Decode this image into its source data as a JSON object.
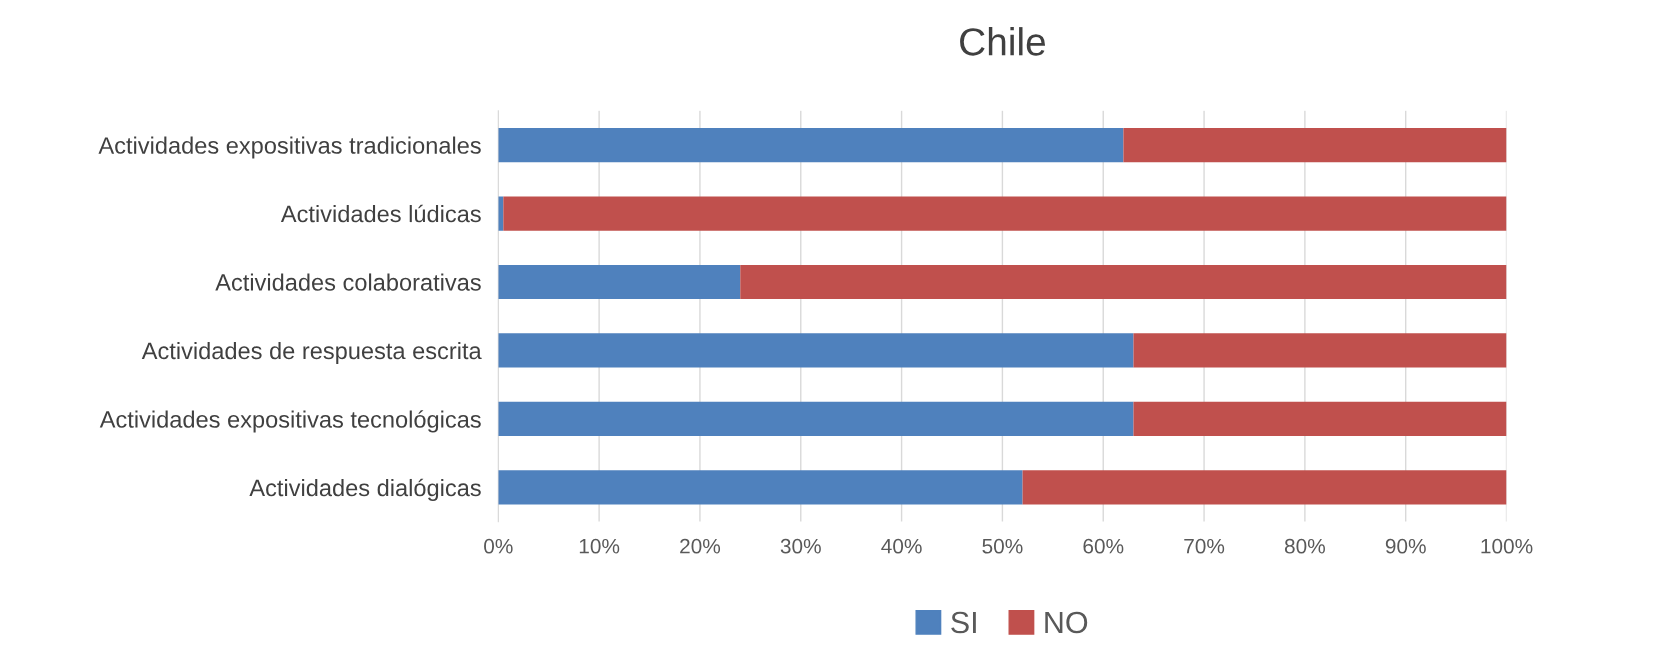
{
  "chart_data": {
    "type": "bar",
    "orientation": "horizontal",
    "stacked": true,
    "title": "Chile",
    "categories": [
      "Actividades expositivas tradicionales",
      "Actividades lúdicas",
      "Actividades colaborativas",
      "Actividades de respuesta escrita",
      "Actividades expositivas tecnológicas",
      "Actividades dialógicas"
    ],
    "series": [
      {
        "name": "SI",
        "color": "#4f81bd",
        "values": [
          62,
          0.5,
          24,
          63,
          63,
          52
        ]
      },
      {
        "name": "NO",
        "color": "#c0504d",
        "values": [
          38,
          99.5,
          76,
          37,
          37,
          48
        ]
      }
    ],
    "xlim": [
      0,
      100
    ],
    "xticks": [
      {
        "value": 0,
        "label": "0%"
      },
      {
        "value": 10,
        "label": "10%"
      },
      {
        "value": 20,
        "label": "20%"
      },
      {
        "value": 30,
        "label": "30%"
      },
      {
        "value": 40,
        "label": "40%"
      },
      {
        "value": 50,
        "label": "50%"
      },
      {
        "value": 60,
        "label": "60%"
      },
      {
        "value": 70,
        "label": "70%"
      },
      {
        "value": 80,
        "label": "80%"
      },
      {
        "value": 90,
        "label": "90%"
      },
      {
        "value": 100,
        "label": "100%"
      }
    ],
    "grid": "x",
    "legend": "bottom"
  }
}
